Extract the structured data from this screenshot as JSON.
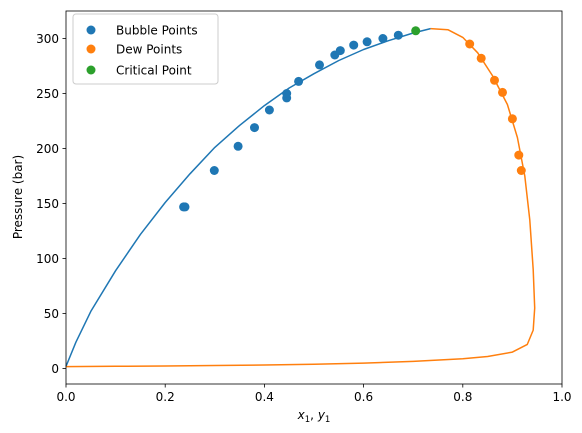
{
  "chart_data": {
    "type": "scatter",
    "xlabel_parts": [
      "x",
      "1",
      ", ",
      "y",
      "1"
    ],
    "ylabel": "Pressure (bar)",
    "xlim": [
      0.0,
      1.0
    ],
    "ylim": [
      -14,
      325
    ],
    "xticks": [
      0.0,
      0.2,
      0.4,
      0.6,
      0.8,
      1.0
    ],
    "xtick_labels": [
      "0.0",
      "0.2",
      "0.4",
      "0.6",
      "0.8",
      "1.0"
    ],
    "yticks": [
      0,
      50,
      100,
      150,
      200,
      250,
      300
    ],
    "ytick_labels": [
      "0",
      "50",
      "100",
      "150",
      "200",
      "250",
      "300"
    ],
    "grid": false,
    "legend_position": "upper-left",
    "series": [
      {
        "name": "Bubble Points",
        "kind": "scatter",
        "color": "#1f77b4",
        "points": [
          [
            0.237,
            147
          ],
          [
            0.24,
            147
          ],
          [
            0.299,
            180
          ],
          [
            0.347,
            202
          ],
          [
            0.38,
            219
          ],
          [
            0.41,
            235
          ],
          [
            0.445,
            246
          ],
          [
            0.445,
            250
          ],
          [
            0.469,
            261
          ],
          [
            0.511,
            276
          ],
          [
            0.542,
            285
          ],
          [
            0.553,
            289
          ],
          [
            0.58,
            294
          ],
          [
            0.607,
            297
          ],
          [
            0.639,
            300
          ],
          [
            0.67,
            303
          ]
        ]
      },
      {
        "name": "Dew Points",
        "kind": "scatter",
        "color": "#ff7f0e",
        "points": [
          [
            0.814,
            295
          ],
          [
            0.837,
            282
          ],
          [
            0.864,
            262
          ],
          [
            0.88,
            251
          ],
          [
            0.9,
            227
          ],
          [
            0.913,
            194
          ],
          [
            0.918,
            180
          ]
        ]
      },
      {
        "name": "Critical Point",
        "kind": "scatter",
        "color": "#2ca02c",
        "points": [
          [
            0.705,
            307
          ]
        ]
      },
      {
        "kind": "line",
        "color": "#1f77b4",
        "points": [
          [
            0.0,
            2
          ],
          [
            0.02,
            24
          ],
          [
            0.05,
            52
          ],
          [
            0.1,
            89
          ],
          [
            0.15,
            122
          ],
          [
            0.2,
            151
          ],
          [
            0.25,
            177
          ],
          [
            0.3,
            201
          ],
          [
            0.35,
            221
          ],
          [
            0.4,
            239
          ],
          [
            0.45,
            255
          ],
          [
            0.5,
            268
          ],
          [
            0.55,
            280
          ],
          [
            0.6,
            290
          ],
          [
            0.65,
            298
          ],
          [
            0.7,
            305
          ],
          [
            0.735,
            309
          ]
        ]
      },
      {
        "kind": "line",
        "color": "#ff7f0e",
        "points": [
          [
            0.735,
            309
          ],
          [
            0.77,
            308
          ],
          [
            0.8,
            301
          ],
          [
            0.83,
            287
          ],
          [
            0.86,
            266
          ],
          [
            0.89,
            240
          ],
          [
            0.91,
            210
          ],
          [
            0.925,
            175
          ],
          [
            0.935,
            135
          ],
          [
            0.942,
            90
          ],
          [
            0.945,
            55
          ],
          [
            0.942,
            35
          ],
          [
            0.93,
            22
          ],
          [
            0.9,
            15
          ],
          [
            0.85,
            11
          ],
          [
            0.8,
            9
          ],
          [
            0.7,
            6.5
          ],
          [
            0.6,
            5
          ],
          [
            0.5,
            4
          ],
          [
            0.4,
            3.3
          ],
          [
            0.3,
            2.8
          ],
          [
            0.2,
            2.4
          ],
          [
            0.1,
            2.1
          ],
          [
            0.0,
            1.8
          ]
        ]
      }
    ]
  }
}
